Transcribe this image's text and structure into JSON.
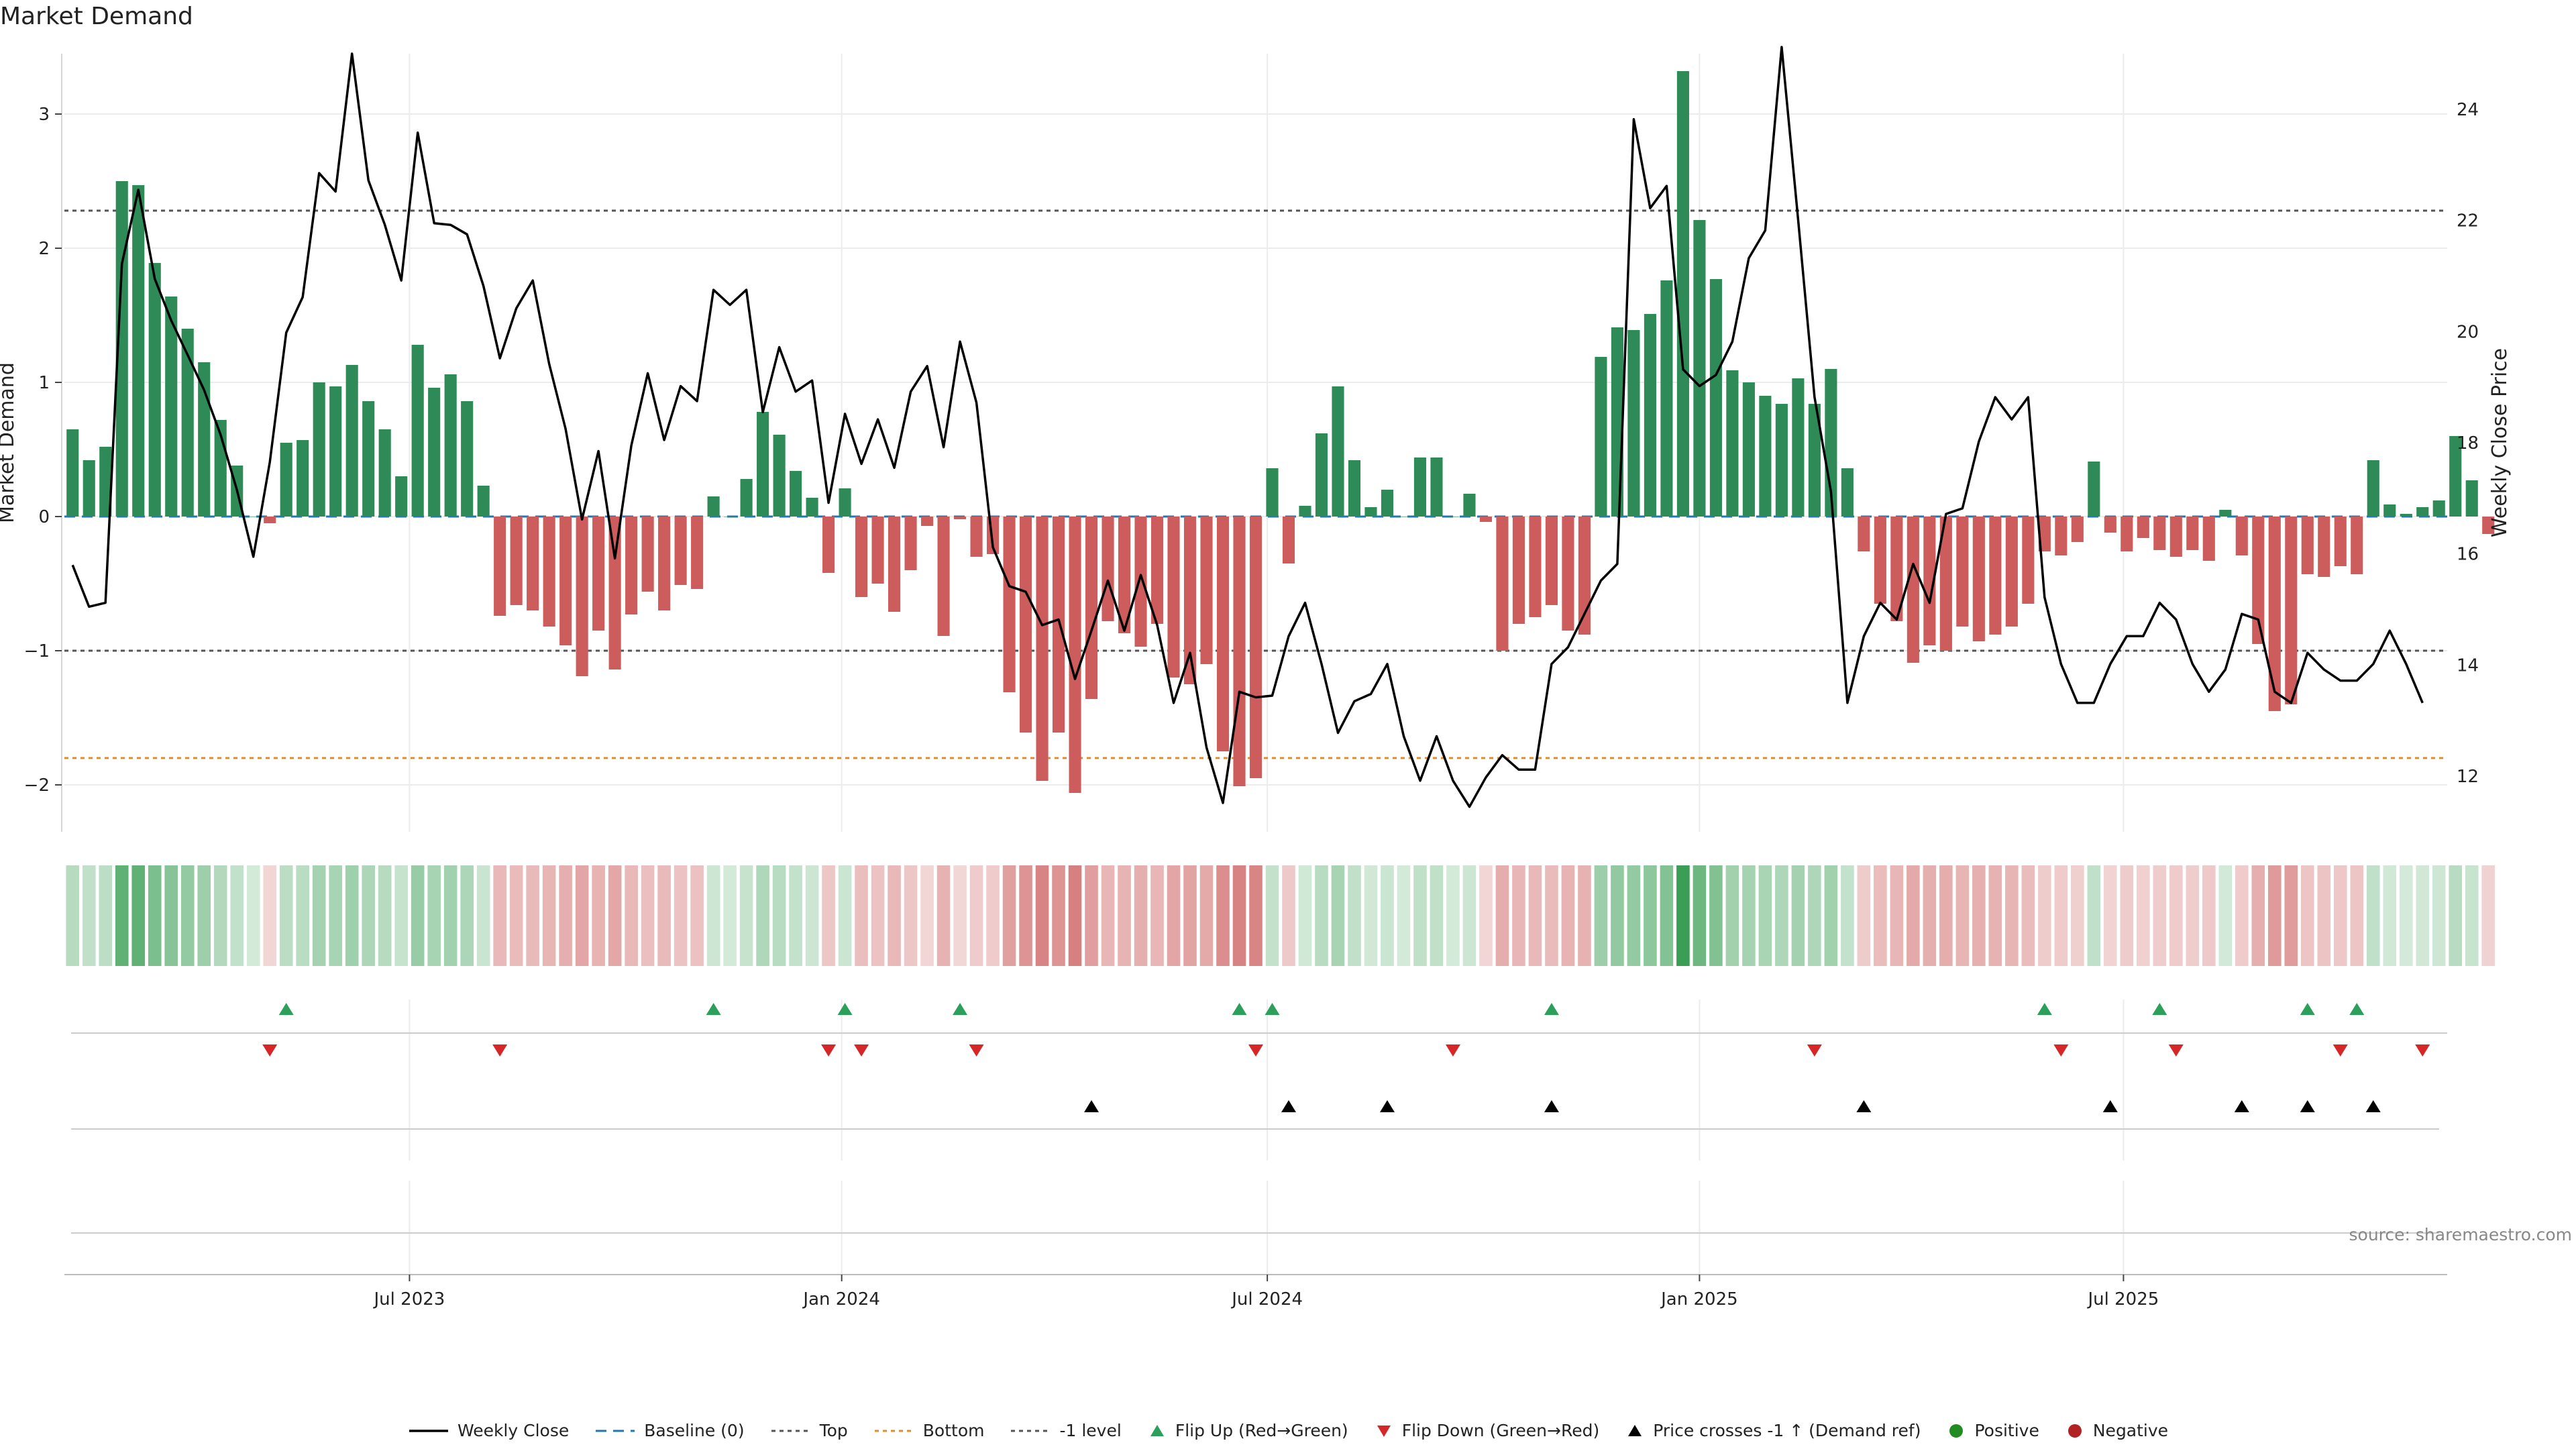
{
  "title": "Market Demand",
  "source": "source: sharemaestro.com",
  "colors": {
    "positive_bar": "#2e8b57",
    "negative_bar": "#cd5c5c",
    "price_line": "#000000",
    "baseline": "#1f77b4",
    "top": "#555555",
    "bottom": "#e08c2c",
    "minus1": "#555555",
    "flip_up": "#2ca05a",
    "flip_down": "#d62728",
    "cross": "#000000",
    "positive_dot": "#228b22",
    "negative_dot": "#b22222"
  },
  "legend": [
    {
      "key": "price",
      "label": "Weekly Close"
    },
    {
      "key": "baseline",
      "label": "Baseline (0)"
    },
    {
      "key": "top",
      "label": "Top"
    },
    {
      "key": "bottom",
      "label": "Bottom"
    },
    {
      "key": "minus1",
      "label": "-1 level"
    },
    {
      "key": "flip_up",
      "label": "Flip Up (Red→Green)"
    },
    {
      "key": "flip_down",
      "label": "Flip Down (Green→Red)"
    },
    {
      "key": "cross",
      "label": "Price crosses -1 ↑ (Demand ref)"
    },
    {
      "key": "positive",
      "label": "Positive"
    },
    {
      "key": "negative",
      "label": "Negative"
    }
  ],
  "chart_data": {
    "type": "bar",
    "title": "Market Demand",
    "ylabel": "Market Demand",
    "y2label": "Weekly Close Price",
    "ylim": [
      -2.35,
      3.45
    ],
    "y2lim": [
      11.0,
      25.0
    ],
    "yticks": [
      -2,
      -1,
      0,
      1,
      2,
      3
    ],
    "yticklabels": [
      "−2",
      "−1",
      "0",
      "1",
      "2",
      "3"
    ],
    "y2ticks": [
      12,
      14,
      16,
      18,
      20,
      22,
      24
    ],
    "reference_lines": {
      "baseline": 0,
      "top": 2.28,
      "bottom": -1.8,
      "minus1": -1.0
    },
    "x_week_range": [
      0,
      144
    ],
    "xticks": [
      {
        "week": 20.5,
        "label": "Jul 2023"
      },
      {
        "week": 46.8,
        "label": "Jan 2024"
      },
      {
        "week": 72.7,
        "label": "Jul 2024"
      },
      {
        "week": 99.0,
        "label": "Jan 2025"
      },
      {
        "week": 124.8,
        "label": "Jul 2025"
      }
    ],
    "demand": [
      0.65,
      0.42,
      0.52,
      2.5,
      2.47,
      1.89,
      1.64,
      1.4,
      1.15,
      0.72,
      0.38,
      0.0,
      -0.05,
      0.55,
      0.57,
      1.0,
      0.97,
      1.13,
      0.86,
      0.65,
      0.3,
      1.28,
      0.96,
      1.06,
      0.86,
      0.23,
      -0.74,
      -0.66,
      -0.7,
      -0.82,
      -0.96,
      -1.19,
      -0.85,
      -1.14,
      -0.73,
      -0.56,
      -0.7,
      -0.51,
      -0.54,
      0.15,
      0.0,
      0.28,
      0.78,
      0.61,
      0.34,
      0.14,
      -0.42,
      0.21,
      -0.6,
      -0.5,
      -0.71,
      -0.4,
      -0.07,
      -0.89,
      -0.02,
      -0.3,
      -0.28,
      -1.31,
      -1.61,
      -1.97,
      -1.61,
      -2.06,
      -1.36,
      -0.78,
      -0.87,
      -0.97,
      -0.8,
      -1.2,
      -1.25,
      -1.1,
      -1.75,
      -2.01,
      -1.95,
      0.36,
      -0.35,
      0.08,
      0.62,
      0.97,
      0.42,
      0.07,
      0.2,
      0.0,
      0.44,
      0.44,
      0.0,
      0.17,
      -0.04,
      -1.0,
      -0.8,
      -0.75,
      -0.66,
      -0.85,
      -0.88,
      1.19,
      1.41,
      1.39,
      1.51,
      1.76,
      3.32,
      2.21,
      1.77,
      1.09,
      1.0,
      0.9,
      0.84,
      1.03,
      0.84,
      1.1,
      0.36,
      -0.26,
      -0.65,
      -0.78,
      -1.09,
      -0.96,
      -1.0,
      -0.82,
      -0.93,
      -0.88,
      -0.82,
      -0.65,
      -0.26,
      -0.29,
      -0.19,
      0.41,
      -0.12,
      -0.26,
      -0.16,
      -0.25,
      -0.3,
      -0.25,
      -0.33,
      0.05,
      -0.29,
      -0.95,
      -1.45,
      -1.4,
      -0.43,
      -0.45,
      -0.37,
      -0.43,
      0.42,
      0.09,
      0.02,
      0.07,
      0.12,
      0.6,
      0.27,
      -0.13
    ],
    "price": [
      15.8,
      15.05,
      15.12,
      21.22,
      22.55,
      20.95,
      20.2,
      19.58,
      18.95,
      18.15,
      17.15,
      15.95,
      17.65,
      19.98,
      20.62,
      22.85,
      22.52,
      25.0,
      22.72,
      21.92,
      20.92,
      23.58,
      21.95,
      21.92,
      21.75,
      20.82,
      19.52,
      20.42,
      20.92,
      19.42,
      18.25,
      16.62,
      17.85,
      15.92,
      17.95,
      19.25,
      18.05,
      19.02,
      18.75,
      20.75,
      20.48,
      20.75,
      18.55,
      19.72,
      18.92,
      19.12,
      16.92,
      18.52,
      17.62,
      18.42,
      17.55,
      18.92,
      19.38,
      17.92,
      19.82,
      18.72,
      16.12,
      15.42,
      15.32,
      14.72,
      14.82,
      13.75,
      14.62,
      15.52,
      14.62,
      15.62,
      14.72,
      13.32,
      14.22,
      12.52,
      11.52,
      13.52,
      13.42,
      13.45,
      14.52,
      15.12,
      14.02,
      12.78,
      13.35,
      13.48,
      14.02,
      12.72,
      11.92,
      12.72,
      11.92,
      11.45,
      11.98,
      12.38,
      12.12,
      12.12,
      14.02,
      14.32,
      14.92,
      15.52,
      15.82,
      23.82,
      22.22,
      22.62,
      19.32,
      19.02,
      19.22,
      19.82,
      21.32,
      21.82,
      25.12,
      22.02,
      18.82,
      17.12,
      13.32,
      14.52,
      15.12,
      14.82,
      15.82,
      15.12,
      16.72,
      16.82,
      18.02,
      18.82,
      18.42,
      18.82,
      15.22,
      14.02,
      13.32,
      13.32,
      14.02,
      14.52,
      14.52,
      15.12,
      14.82,
      14.02,
      13.52,
      13.92,
      14.92,
      14.82,
      13.52,
      13.32,
      14.22,
      13.92,
      13.72,
      13.72,
      14.02,
      14.62,
      14.02,
      13.32
    ],
    "flip_up_weeks": [
      13,
      39,
      47,
      54,
      71,
      73,
      90,
      120,
      127,
      136,
      139
    ],
    "flip_down_weeks": [
      12,
      26,
      46,
      48,
      55,
      72,
      84,
      106,
      121,
      128,
      138,
      143
    ],
    "cross_weeks": [
      62,
      74,
      80,
      90,
      109,
      124,
      132,
      136,
      140
    ]
  }
}
